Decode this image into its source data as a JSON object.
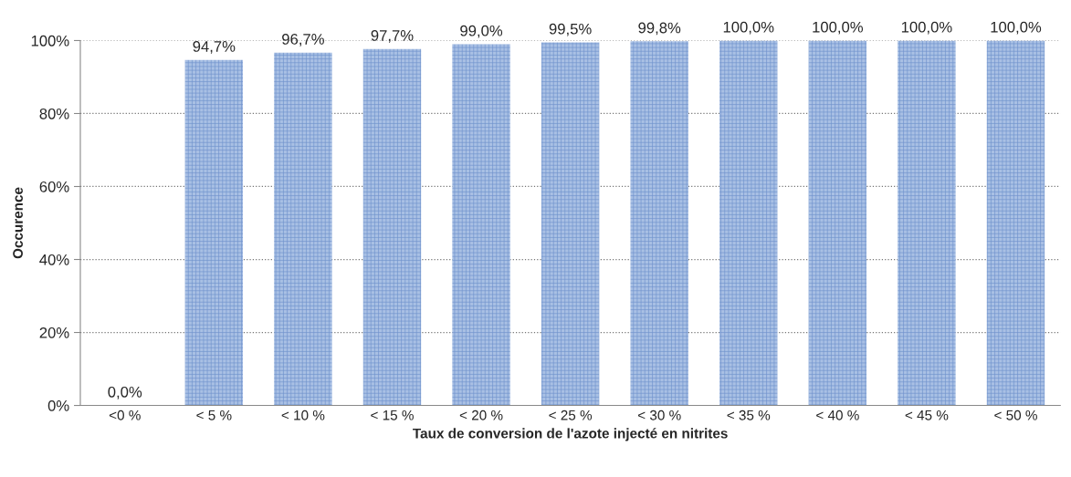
{
  "chart_data": {
    "type": "bar",
    "xlabel": "Taux de conversion de l'azote injecté en nitrites",
    "ylabel": "Occurence",
    "categories": [
      "<0 %",
      "< 5 %",
      "< 10 %",
      "< 15 %",
      "< 20 %",
      "< 25 %",
      "< 30 %",
      "< 35 %",
      "< 40 %",
      "< 45 %",
      "< 50 %"
    ],
    "values": [
      0.0,
      94.7,
      96.7,
      97.7,
      99.0,
      99.5,
      99.8,
      100.0,
      100.0,
      100.0,
      100.0
    ],
    "value_labels": [
      "0,0%",
      "94,7%",
      "96,7%",
      "97,7%",
      "99,0%",
      "99,5%",
      "99,8%",
      "100,0%",
      "100,0%",
      "100,0%",
      "100,0%"
    ],
    "color": "#a9c0e4",
    "ylim": [
      0,
      100
    ],
    "yticks": [
      {
        "value": 0,
        "label": "0%"
      },
      {
        "value": 20,
        "label": "20%"
      },
      {
        "value": 40,
        "label": "40%"
      },
      {
        "value": 60,
        "label": "60%"
      },
      {
        "value": 80,
        "label": "80%"
      },
      {
        "value": 100,
        "label": "100%"
      }
    ],
    "grid": "y"
  }
}
